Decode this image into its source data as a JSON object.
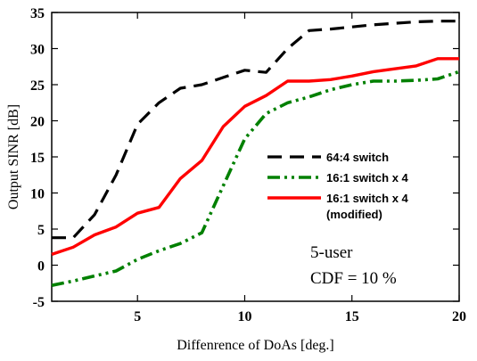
{
  "chart_data": {
    "type": "line",
    "title": "",
    "xlabel": "Diffenrence of DoAs [deg.]",
    "ylabel": "Output SINR [dB]",
    "xlim": [
      1,
      20
    ],
    "ylim": [
      -5,
      35
    ],
    "xticks": [
      5,
      10,
      15,
      20
    ],
    "yticks": [
      -5,
      0,
      5,
      10,
      15,
      20,
      25,
      30,
      35
    ],
    "grid": false,
    "legend_position": "right-middle",
    "x": [
      1,
      2,
      3,
      4,
      5,
      6,
      7,
      8,
      9,
      10,
      11,
      12,
      13,
      14,
      15,
      16,
      17,
      18,
      19,
      20
    ],
    "series": [
      {
        "name": "64:4 switch",
        "color": "#000000",
        "style": "dashed",
        "values": [
          3.8,
          3.8,
          7,
          12.5,
          19.5,
          22.5,
          24.5,
          25,
          26,
          27,
          26.7,
          30,
          32.5,
          32.7,
          33,
          33.3,
          33.5,
          33.7,
          33.8,
          33.8
        ]
      },
      {
        "name": "16:1 switch x 4",
        "color": "#008000",
        "style": "dash-dot-dot",
        "values": [
          -2.8,
          -2.2,
          -1.5,
          -0.8,
          0.8,
          2,
          3,
          4.5,
          11,
          17.5,
          21,
          22.5,
          23.3,
          24.3,
          25,
          25.5,
          25.5,
          25.6,
          25.8,
          26.8
        ]
      },
      {
        "name": "16:1 switch x 4",
        "name_line2": "(modified)",
        "color": "#ff0000",
        "style": "solid",
        "values": [
          1.5,
          2.5,
          4.2,
          5.3,
          7.2,
          8,
          12,
          14.5,
          19.2,
          22,
          23.5,
          25.5,
          25.5,
          25.7,
          26.2,
          26.8,
          27.2,
          27.6,
          28.6,
          28.6
        ]
      }
    ],
    "annotations": [
      "5-user",
      "CDF = 10 %"
    ]
  }
}
